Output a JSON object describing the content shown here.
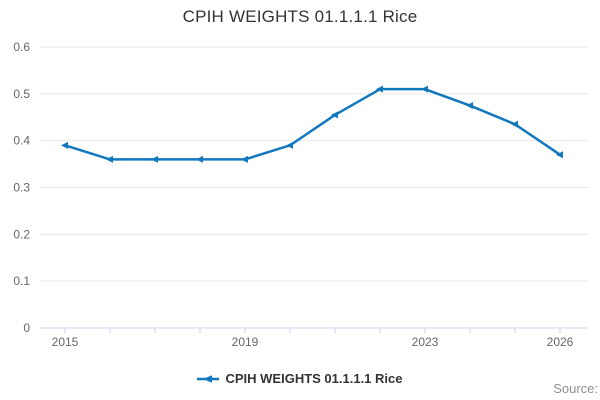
{
  "title": "CPIH WEIGHTS 01.1.1.1 Rice",
  "legend": {
    "label": "CPIH WEIGHTS 01.1.1.1 Rice"
  },
  "source_label": "Source:",
  "colors": {
    "line": "#1278be",
    "grid": "#e6e6e6",
    "axis": "#ccd6eb",
    "tick_label": "#666666",
    "title_text": "#333333",
    "legend_text": "#333333",
    "source_text": "#8f8f8f",
    "background": "#ffffff"
  },
  "chart_data": {
    "type": "line",
    "title": "CPIH WEIGHTS 01.1.1.1 Rice",
    "x": [
      2015,
      2016,
      2017,
      2018,
      2019,
      2020,
      2021,
      2022,
      2023,
      2024,
      2025,
      2026
    ],
    "series": [
      {
        "name": "CPIH WEIGHTS 01.1.1.1 Rice",
        "values": [
          0.39,
          0.36,
          0.36,
          0.36,
          0.36,
          0.39,
          0.455,
          0.51,
          0.51,
          0.475,
          0.435,
          0.37
        ]
      }
    ],
    "xlabel": "",
    "ylabel": "",
    "ylim": [
      0,
      0.6
    ],
    "ytick_values": [
      0,
      0.1,
      0.2,
      0.3,
      0.4,
      0.5,
      0.6
    ],
    "ytick_labels": [
      "0",
      "0.1",
      "0.2",
      "0.3",
      "0.4",
      "0.5",
      "0.6"
    ],
    "xtick_labeled_years": [
      2015,
      2019,
      2023,
      2026
    ],
    "xtick_label_strings": [
      "2015",
      "2019",
      "2023",
      "2026"
    ],
    "grid": "horizontal",
    "legend_position": "bottom",
    "marker": "triangle-left"
  }
}
